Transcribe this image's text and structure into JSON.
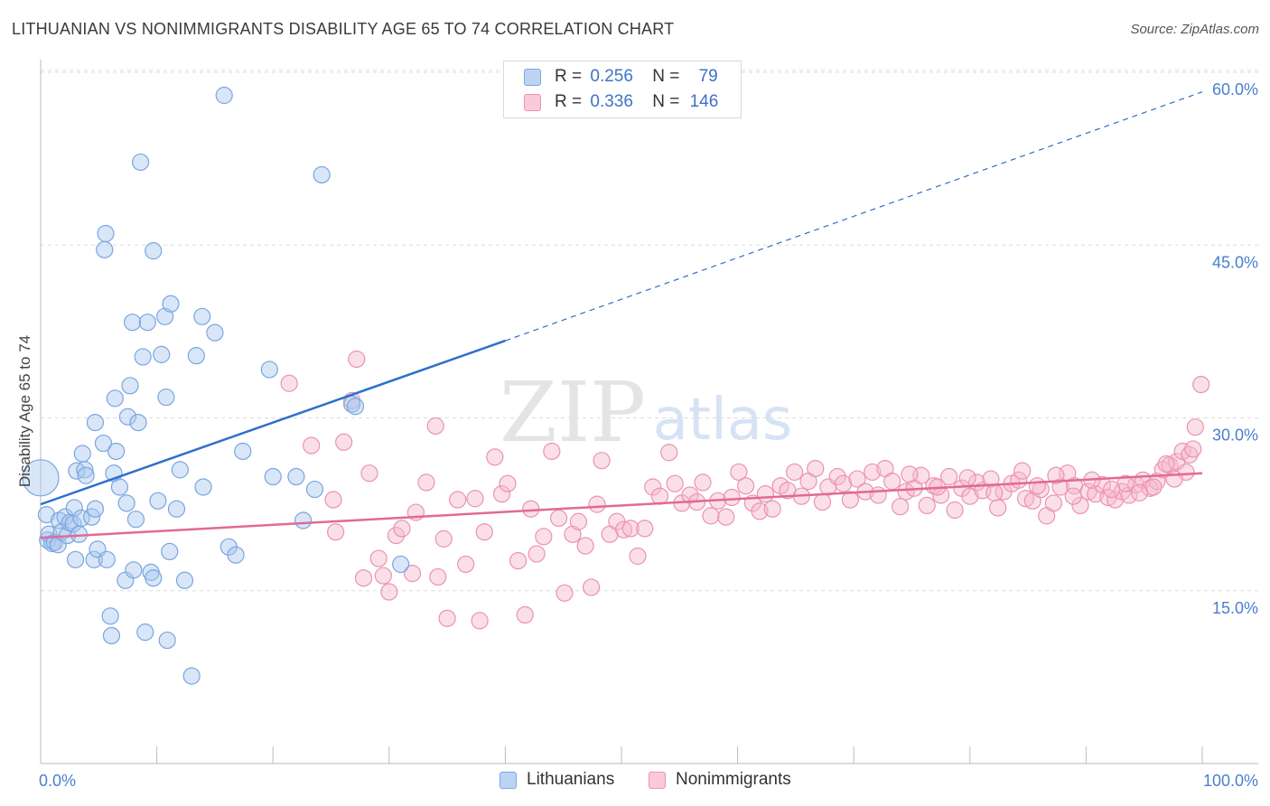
{
  "title": "LITHUANIAN VS NONIMMIGRANTS DISABILITY AGE 65 TO 74 CORRELATION CHART",
  "source": "Source: ZipAtlas.com",
  "watermark": {
    "zip": "ZIP",
    "atlas": "atlas"
  },
  "legend": {
    "lithuanians": {
      "r_label": "R =",
      "r_value": "0.256",
      "n_label": "N =",
      "n_value": "79"
    },
    "nonimmigrants": {
      "r_label": "R =",
      "r_value": "0.336",
      "n_label": "N =",
      "n_value": "146"
    }
  },
  "bottom_legend": {
    "lithuanians": "Lithuanians",
    "nonimmigrants": "Nonimmigrants"
  },
  "colors": {
    "blue_fill": "#a9c8f0",
    "blue_stroke": "#7aa6e0",
    "blue_line": "#2e6fcc",
    "pink_fill": "#f7b9cc",
    "pink_stroke": "#eb93ae",
    "pink_line": "#e06a96",
    "grid": "#dcdcdc",
    "tick_label": "#4a7fd0"
  },
  "chart_data": {
    "type": "scatter",
    "title": "LITHUANIAN VS NONIMMIGRANTS DISABILITY AGE 65 TO 74 CORRELATION CHART",
    "xlabel": "",
    "ylabel": "Disability Age 65 to 74",
    "xlim": [
      0,
      100
    ],
    "ylim": [
      0,
      61
    ],
    "x_tick_labels": [
      "0.0%",
      "100.0%"
    ],
    "y_ticks": [
      15,
      30,
      45,
      60
    ],
    "y_tick_labels": [
      "15.0%",
      "30.0%",
      "45.0%",
      "60.0%"
    ],
    "grid": true,
    "legend_position": "top-center",
    "series": [
      {
        "name": "Lithuanians",
        "r": 0.256,
        "n": 79,
        "trend": {
          "x0": 0,
          "y0": 22.5,
          "x1": 40,
          "y1": 36.7,
          "dashed_to_x": 100,
          "dashed_to_y": 58.3
        },
        "points": [
          [
            0,
            24.8
          ],
          [
            0.5,
            21.6
          ],
          [
            0.6,
            19.4
          ],
          [
            0.7,
            19.9
          ],
          [
            1.0,
            19.1
          ],
          [
            1.2,
            19.2
          ],
          [
            1.5,
            19.0
          ],
          [
            1.6,
            21.1
          ],
          [
            1.8,
            20.1
          ],
          [
            2.1,
            21.4
          ],
          [
            2.3,
            19.8
          ],
          [
            2.5,
            20.9
          ],
          [
            2.8,
            20.8
          ],
          [
            2.9,
            22.2
          ],
          [
            3.0,
            17.7
          ],
          [
            3.1,
            25.4
          ],
          [
            3.3,
            19.9
          ],
          [
            3.5,
            21.3
          ],
          [
            3.6,
            26.9
          ],
          [
            3.8,
            25.5
          ],
          [
            3.9,
            25.0
          ],
          [
            4.4,
            21.4
          ],
          [
            4.6,
            17.7
          ],
          [
            4.7,
            22.1
          ],
          [
            4.7,
            29.6
          ],
          [
            4.9,
            18.6
          ],
          [
            5.4,
            27.8
          ],
          [
            5.5,
            44.6
          ],
          [
            5.6,
            46.0
          ],
          [
            5.7,
            17.7
          ],
          [
            6.0,
            12.8
          ],
          [
            6.1,
            11.1
          ],
          [
            6.3,
            25.2
          ],
          [
            6.4,
            31.7
          ],
          [
            6.5,
            27.1
          ],
          [
            6.8,
            24.0
          ],
          [
            7.3,
            15.9
          ],
          [
            7.4,
            22.6
          ],
          [
            7.5,
            30.1
          ],
          [
            7.7,
            32.8
          ],
          [
            7.9,
            38.3
          ],
          [
            8.0,
            16.8
          ],
          [
            8.2,
            21.2
          ],
          [
            8.4,
            29.6
          ],
          [
            8.6,
            52.2
          ],
          [
            8.8,
            35.3
          ],
          [
            9.0,
            11.4
          ],
          [
            9.2,
            38.3
          ],
          [
            9.5,
            16.6
          ],
          [
            9.7,
            16.1
          ],
          [
            9.7,
            44.5
          ],
          [
            10.1,
            22.8
          ],
          [
            10.4,
            35.5
          ],
          [
            10.7,
            38.8
          ],
          [
            10.8,
            31.8
          ],
          [
            10.9,
            10.7
          ],
          [
            11.1,
            18.4
          ],
          [
            11.2,
            39.9
          ],
          [
            11.7,
            22.1
          ],
          [
            12.0,
            25.5
          ],
          [
            12.4,
            15.9
          ],
          [
            13.0,
            7.6
          ],
          [
            13.4,
            35.4
          ],
          [
            13.9,
            38.8
          ],
          [
            14.0,
            24.0
          ],
          [
            15.0,
            37.4
          ],
          [
            15.8,
            58.0
          ],
          [
            16.2,
            18.8
          ],
          [
            16.8,
            18.1
          ],
          [
            17.4,
            27.1
          ],
          [
            19.7,
            34.2
          ],
          [
            20.0,
            24.9
          ],
          [
            22.0,
            24.9
          ],
          [
            22.6,
            21.1
          ],
          [
            23.6,
            23.8
          ],
          [
            24.2,
            51.1
          ],
          [
            26.8,
            31.2
          ],
          [
            27.1,
            31.0
          ],
          [
            31.0,
            17.3
          ]
        ]
      },
      {
        "name": "Nonimmigrants",
        "r": 0.336,
        "n": 146,
        "trend": {
          "x0": 0,
          "y0": 19.6,
          "x1": 100,
          "y1": 25.2
        },
        "points": [
          [
            21.4,
            33.0
          ],
          [
            23.3,
            27.6
          ],
          [
            25.2,
            22.9
          ],
          [
            25.4,
            20.1
          ],
          [
            26.1,
            27.9
          ],
          [
            26.8,
            31.5
          ],
          [
            27.2,
            35.1
          ],
          [
            27.8,
            16.1
          ],
          [
            28.3,
            25.2
          ],
          [
            29.1,
            17.8
          ],
          [
            29.5,
            16.3
          ],
          [
            30.0,
            14.9
          ],
          [
            30.6,
            19.8
          ],
          [
            31.1,
            20.4
          ],
          [
            32.0,
            16.5
          ],
          [
            32.3,
            21.8
          ],
          [
            33.2,
            24.4
          ],
          [
            34.0,
            29.3
          ],
          [
            34.2,
            16.2
          ],
          [
            34.7,
            19.5
          ],
          [
            35.0,
            12.6
          ],
          [
            35.9,
            22.9
          ],
          [
            36.6,
            17.3
          ],
          [
            37.4,
            23.0
          ],
          [
            37.8,
            12.4
          ],
          [
            38.2,
            20.1
          ],
          [
            39.1,
            26.6
          ],
          [
            39.7,
            23.4
          ],
          [
            40.2,
            24.3
          ],
          [
            41.1,
            17.6
          ],
          [
            41.7,
            12.9
          ],
          [
            42.2,
            22.1
          ],
          [
            42.7,
            18.2
          ],
          [
            43.3,
            19.7
          ],
          [
            44.0,
            27.1
          ],
          [
            44.6,
            21.3
          ],
          [
            45.1,
            14.8
          ],
          [
            45.8,
            19.9
          ],
          [
            46.3,
            21.0
          ],
          [
            46.9,
            18.9
          ],
          [
            47.4,
            15.3
          ],
          [
            47.9,
            22.5
          ],
          [
            48.3,
            26.3
          ],
          [
            49.0,
            19.9
          ],
          [
            49.6,
            21.0
          ],
          [
            50.2,
            20.3
          ],
          [
            50.8,
            20.4
          ],
          [
            51.4,
            18.0
          ],
          [
            52.0,
            20.4
          ],
          [
            52.7,
            24.0
          ],
          [
            53.3,
            23.2
          ],
          [
            54.1,
            27.0
          ],
          [
            54.6,
            24.3
          ],
          [
            55.2,
            22.6
          ],
          [
            55.9,
            23.3
          ],
          [
            56.5,
            22.7
          ],
          [
            57.0,
            24.4
          ],
          [
            57.7,
            21.5
          ],
          [
            58.3,
            22.8
          ],
          [
            59.0,
            21.4
          ],
          [
            59.5,
            23.1
          ],
          [
            60.1,
            25.3
          ],
          [
            60.7,
            24.1
          ],
          [
            61.3,
            22.6
          ],
          [
            61.9,
            21.9
          ],
          [
            62.4,
            23.4
          ],
          [
            63.0,
            22.1
          ],
          [
            63.7,
            24.1
          ],
          [
            64.3,
            23.7
          ],
          [
            64.9,
            25.3
          ],
          [
            65.5,
            23.2
          ],
          [
            66.1,
            24.5
          ],
          [
            66.7,
            25.6
          ],
          [
            67.3,
            22.7
          ],
          [
            67.8,
            24.0
          ],
          [
            68.6,
            24.9
          ],
          [
            69.1,
            24.3
          ],
          [
            69.7,
            22.9
          ],
          [
            70.3,
            24.7
          ],
          [
            71.0,
            23.6
          ],
          [
            71.6,
            25.3
          ],
          [
            72.1,
            23.3
          ],
          [
            72.7,
            25.6
          ],
          [
            73.3,
            24.5
          ],
          [
            74.0,
            22.3
          ],
          [
            74.5,
            23.6
          ],
          [
            75.2,
            23.9
          ],
          [
            75.8,
            25.0
          ],
          [
            76.3,
            22.4
          ],
          [
            76.9,
            24.1
          ],
          [
            77.5,
            23.3
          ],
          [
            78.2,
            24.9
          ],
          [
            78.7,
            22.0
          ],
          [
            79.3,
            23.9
          ],
          [
            80.0,
            23.2
          ],
          [
            80.6,
            24.4
          ],
          [
            81.1,
            23.7
          ],
          [
            81.8,
            24.7
          ],
          [
            82.4,
            22.2
          ],
          [
            82.9,
            23.6
          ],
          [
            83.6,
            24.3
          ],
          [
            84.2,
            24.6
          ],
          [
            84.8,
            23.0
          ],
          [
            85.4,
            22.8
          ],
          [
            86.1,
            23.8
          ],
          [
            86.6,
            21.5
          ],
          [
            87.2,
            22.6
          ],
          [
            87.8,
            24.0
          ],
          [
            88.4,
            25.2
          ],
          [
            89.0,
            24.1
          ],
          [
            89.5,
            22.4
          ],
          [
            90.2,
            23.6
          ],
          [
            90.8,
            23.4
          ],
          [
            91.4,
            24.2
          ],
          [
            91.9,
            23.1
          ],
          [
            92.5,
            22.9
          ],
          [
            93.1,
            23.6
          ],
          [
            93.7,
            23.3
          ],
          [
            94.3,
            24.2
          ],
          [
            94.9,
            24.6
          ],
          [
            95.5,
            23.9
          ],
          [
            96.1,
            24.5
          ],
          [
            96.6,
            25.5
          ],
          [
            97.2,
            25.9
          ],
          [
            97.8,
            26.2
          ],
          [
            98.3,
            27.1
          ],
          [
            98.9,
            26.8
          ],
          [
            99.4,
            29.2
          ],
          [
            99.9,
            32.9
          ],
          [
            99.2,
            27.3
          ],
          [
            98.6,
            25.3
          ],
          [
            97.6,
            24.7
          ],
          [
            96.9,
            26.0
          ],
          [
            95.8,
            24.0
          ],
          [
            94.6,
            23.5
          ],
          [
            93.4,
            24.3
          ],
          [
            92.2,
            23.8
          ],
          [
            90.5,
            24.6
          ],
          [
            88.9,
            23.2
          ],
          [
            87.4,
            25.0
          ],
          [
            85.8,
            24.1
          ],
          [
            84.5,
            25.4
          ],
          [
            82.1,
            23.5
          ],
          [
            79.8,
            24.8
          ],
          [
            77.2,
            24.0
          ],
          [
            74.8,
            25.1
          ]
        ]
      }
    ]
  }
}
